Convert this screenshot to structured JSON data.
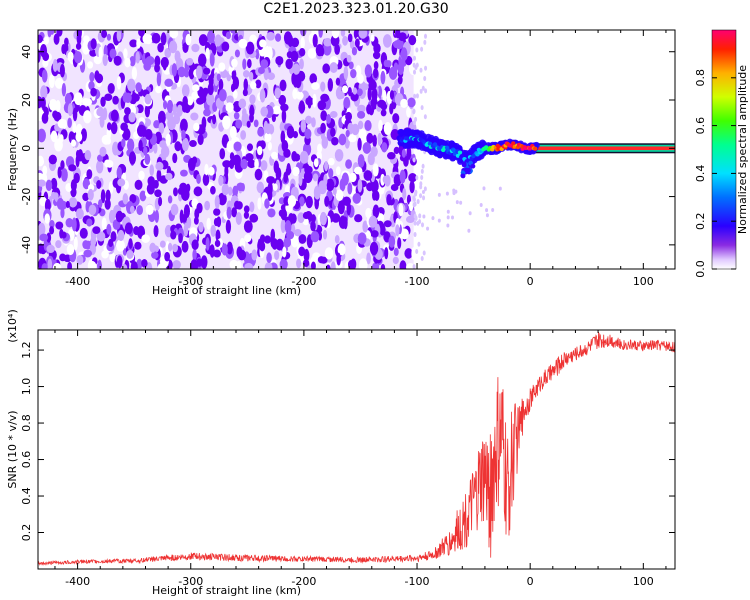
{
  "title": "C2E1.2023.323.01.20.G30",
  "chart_data": [
    {
      "type": "heatmap",
      "xlabel": "Height of straight line (km)",
      "ylabel": "Frequency (Hz)",
      "xlim": [
        -435,
        128
      ],
      "ylim": [
        -50,
        49
      ],
      "x_ticks": [
        "-400",
        "-300",
        "-200",
        "-100",
        "0",
        "100"
      ],
      "x_tick_values": [
        -400,
        -300,
        -200,
        -100,
        0,
        100
      ],
      "y_ticks": [
        "-40",
        "-20",
        "0",
        "20",
        "40"
      ],
      "y_tick_values": [
        -40,
        -20,
        0,
        20,
        40
      ],
      "noise_region": {
        "x_range": [
          -435,
          -103
        ],
        "y_range": [
          -50,
          49
        ],
        "typical_amplitude": 0.1
      },
      "signal_trace": {
        "x": [
          -115,
          -100,
          -90,
          -80,
          -70,
          -65,
          -60,
          -55,
          -50,
          -45,
          -40,
          -35,
          -30,
          -25,
          -20,
          -15,
          -10,
          0,
          20,
          60,
          128
        ],
        "y": [
          4,
          4,
          2,
          0,
          -1,
          -2,
          -3,
          -6,
          -3,
          -1,
          0,
          0,
          0,
          0.5,
          1.5,
          1.5,
          0.5,
          0,
          0,
          0,
          0
        ],
        "amplitude": [
          0.2,
          0.2,
          0.25,
          0.25,
          0.25,
          0.25,
          0.2,
          0.2,
          0.25,
          0.35,
          0.5,
          0.7,
          0.9,
          0.92,
          0.95,
          0.95,
          0.92,
          0.95,
          0.95,
          0.95,
          0.95
        ]
      },
      "colorbar": {
        "label": "Normalized spectral amplitude",
        "range": [
          0,
          1
        ],
        "ticks": [
          "0.0",
          "0.2",
          "0.4",
          "0.6",
          "0.8"
        ],
        "tick_values": [
          0,
          0.2,
          0.4,
          0.6,
          0.8
        ],
        "colormap": "rainbow-white-low"
      },
      "grid": false
    },
    {
      "type": "line",
      "xlabel": "Height of straight line (km)",
      "ylabel": "SNR (10 * v/v)",
      "y_scale_label": "(x10⁴)",
      "xlim": [
        -435,
        128
      ],
      "ylim": [
        0,
        13100
      ],
      "x_ticks": [
        "-400",
        "-300",
        "-200",
        "-100",
        "0",
        "100"
      ],
      "x_tick_values": [
        -400,
        -300,
        -200,
        -100,
        0,
        100
      ],
      "y_ticks": [
        "0.2",
        "0.4",
        "0.6",
        "0.8",
        "1.0",
        "1.2"
      ],
      "y_tick_values": [
        2000,
        4000,
        6000,
        8000,
        10000,
        12000
      ],
      "series": [
        {
          "color": "#ee3333",
          "x": [
            -435,
            -400,
            -350,
            -300,
            -250,
            -200,
            -150,
            -100,
            -85,
            -70,
            -60,
            -50,
            -45,
            -40,
            -35,
            -30,
            -25,
            -20,
            -15,
            -10,
            -5,
            0,
            5,
            10,
            20,
            30,
            40,
            50,
            60,
            70,
            80,
            90,
            100,
            110,
            128
          ],
          "values": [
            300,
            400,
            450,
            700,
            600,
            550,
            500,
            600,
            800,
            1500,
            2500,
            3500,
            4500,
            5000,
            4000,
            6500,
            7000,
            4000,
            6500,
            7500,
            8800,
            9300,
            9800,
            10300,
            10800,
            11500,
            11800,
            12100,
            12500,
            12600,
            12300,
            12300,
            12200,
            12300,
            12200
          ],
          "noise_amplitude": [
            80,
            100,
            120,
            200,
            180,
            150,
            150,
            200,
            300,
            800,
            1500,
            2000,
            2500,
            3000,
            3500,
            4000,
            4000,
            3500,
            3000,
            1500,
            800,
            600,
            500,
            500,
            500,
            500,
            400,
            400,
            500,
            400,
            300,
            300,
            300,
            300,
            300
          ]
        }
      ],
      "grid": false
    }
  ]
}
